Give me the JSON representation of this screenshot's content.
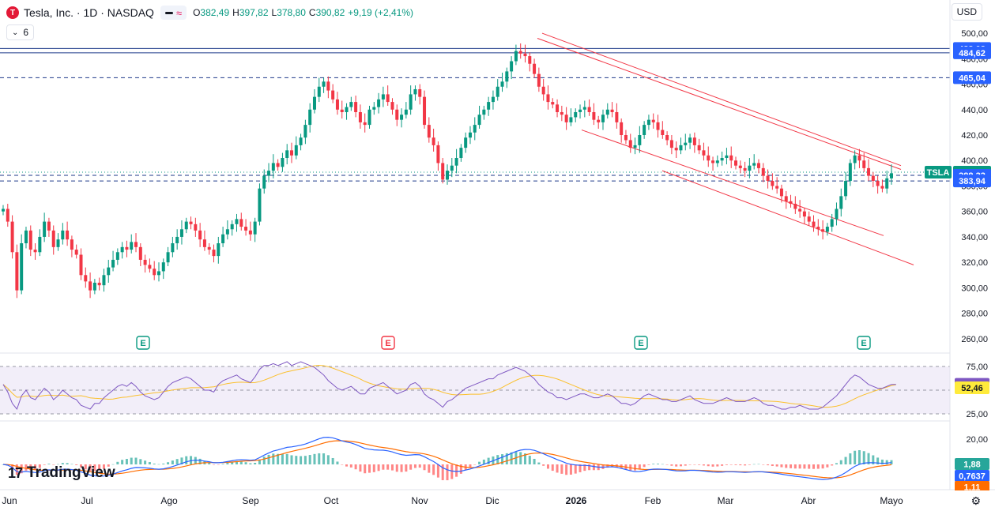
{
  "header": {
    "logo_letter": "T",
    "symbol_title": "Tesla, Inc. · 1D · NASDAQ",
    "ohlc": [
      {
        "k": "O",
        "v": "382,49"
      },
      {
        "k": "H",
        "v": "397,82"
      },
      {
        "k": "L",
        "v": "378,80"
      },
      {
        "k": "C",
        "v": "390,82"
      }
    ],
    "change": "+9,19 (+2,41%)",
    "indicators_count": "6",
    "currency": "USD"
  },
  "price_axis": {
    "ticks": [
      "500,00",
      "480,00",
      "460,00",
      "440,00",
      "420,00",
      "400,00",
      "380,00",
      "360,00",
      "340,00",
      "320,00",
      "300,00",
      "280,00",
      "260,00"
    ],
    "badges": [
      {
        "text": "488,03",
        "value": 488.03,
        "color": "#2962ff"
      },
      {
        "text": "484,62",
        "value": 484.62,
        "color": "#2962ff"
      },
      {
        "text": "465,04",
        "value": 465.04,
        "color": "#2962ff"
      },
      {
        "text": "390,82",
        "value": 390.82,
        "color": "#089981"
      },
      {
        "text": "388,33",
        "value": 388.33,
        "color": "#2962ff"
      },
      {
        "text": "383,94",
        "value": 383.94,
        "color": "#2962ff"
      }
    ],
    "symbol_badge": "TSLA"
  },
  "rsi_axis": {
    "ticks": [
      "75,00",
      "25,00"
    ],
    "badges": [
      {
        "text": "56,14",
        "value": 56.14,
        "color": "#7e57c2"
      },
      {
        "text": "52,46",
        "value": 52.46,
        "color": "#ffeb3b"
      }
    ]
  },
  "macd_axis": {
    "ticks": [
      "20,00",
      "0"
    ],
    "badges": [
      {
        "text": "1,88",
        "color": "#26a69a"
      },
      {
        "text": "0,7637",
        "color": "#2962ff"
      },
      {
        "text": "1,11",
        "color": "#ff6d00"
      }
    ]
  },
  "time_axis": [
    "Jun",
    "Jul",
    "Ago",
    "Sep",
    "Oct",
    "Nov",
    "Dic",
    "2026",
    "Feb",
    "Mar",
    "Abr",
    "Mayo"
  ],
  "earnings_marker": "E",
  "branding": {
    "mark": "17",
    "name": "TradingView"
  },
  "chart_data": {
    "type": "candlestick",
    "ylim": [
      250,
      505
    ],
    "horizontal_lines": [
      488.03,
      484.62,
      465.04,
      388.33,
      383.94
    ],
    "last_price": 390.82,
    "closes": [
      362,
      352,
      328,
      298,
      335,
      345,
      330,
      328,
      340,
      352,
      345,
      332,
      338,
      345,
      338,
      330,
      326,
      310,
      305,
      298,
      304,
      302,
      310,
      316,
      322,
      328,
      332,
      330,
      336,
      332,
      322,
      318,
      315,
      310,
      313,
      320,
      328,
      335,
      340,
      346,
      352,
      350,
      345,
      338,
      332,
      330,
      325,
      335,
      342,
      346,
      350,
      354,
      348,
      345,
      342,
      352,
      378,
      388,
      392,
      398,
      395,
      402,
      408,
      404,
      412,
      418,
      428,
      440,
      450,
      458,
      462,
      455,
      448,
      440,
      438,
      442,
      446,
      438,
      430,
      428,
      440,
      442,
      448,
      452,
      446,
      440,
      432,
      436,
      440,
      452,
      456,
      450,
      428,
      418,
      412,
      398,
      385,
      392,
      396,
      402,
      410,
      418,
      422,
      428,
      436,
      440,
      446,
      450,
      458,
      462,
      470,
      478,
      486,
      484,
      482,
      476,
      468,
      458,
      452,
      446,
      444,
      438,
      436,
      430,
      434,
      438,
      440,
      442,
      438,
      432,
      430,
      436,
      440,
      438,
      430,
      420,
      416,
      410,
      412,
      420,
      428,
      432,
      430,
      424,
      420,
      416,
      410,
      408,
      412,
      414,
      418,
      412,
      408,
      404,
      400,
      398,
      400,
      402,
      404,
      400,
      396,
      394,
      392,
      396,
      398,
      394,
      388,
      384,
      380,
      378,
      372,
      368,
      366,
      362,
      360,
      356,
      352,
      348,
      346,
      344,
      348,
      354,
      362,
      372,
      384,
      398,
      404,
      400,
      394,
      388,
      384,
      380,
      378,
      386,
      390
    ],
    "rsi": [
      56,
      48,
      36,
      30,
      44,
      50,
      42,
      40,
      46,
      52,
      48,
      40,
      44,
      50,
      46,
      42,
      40,
      34,
      32,
      30,
      36,
      36,
      42,
      46,
      50,
      54,
      56,
      54,
      58,
      54,
      48,
      44,
      42,
      40,
      42,
      48,
      54,
      58,
      60,
      62,
      64,
      62,
      58,
      54,
      50,
      50,
      48,
      56,
      60,
      62,
      64,
      66,
      62,
      60,
      58,
      64,
      72,
      76,
      76,
      78,
      76,
      78,
      80,
      76,
      78,
      80,
      78,
      76,
      74,
      70,
      66,
      60,
      56,
      52,
      50,
      52,
      54,
      50,
      46,
      46,
      52,
      54,
      56,
      58,
      54,
      50,
      46,
      48,
      50,
      56,
      58,
      54,
      46,
      42,
      40,
      36,
      32,
      38,
      40,
      44,
      48,
      52,
      54,
      56,
      58,
      60,
      62,
      62,
      66,
      68,
      70,
      72,
      74,
      72,
      70,
      66,
      62,
      56,
      52,
      48,
      46,
      42,
      42,
      40,
      42,
      44,
      46,
      46,
      44,
      42,
      42,
      44,
      46,
      44,
      40,
      36,
      36,
      34,
      36,
      40,
      44,
      46,
      44,
      42,
      40,
      40,
      38,
      38,
      40,
      42,
      44,
      40,
      38,
      36,
      36,
      36,
      38,
      40,
      42,
      40,
      38,
      38,
      38,
      40,
      42,
      40,
      36,
      34,
      34,
      32,
      30,
      30,
      32,
      32,
      34,
      32,
      30,
      30,
      30,
      32,
      36,
      40,
      44,
      50,
      56,
      62,
      66,
      64,
      60,
      56,
      54,
      52,
      52,
      54,
      56,
      56
    ]
  }
}
